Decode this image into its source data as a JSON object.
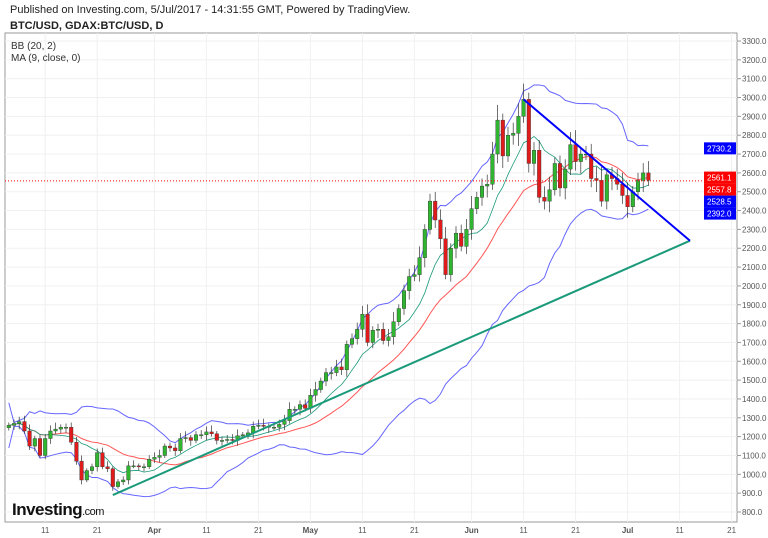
{
  "header": {
    "published": "Published on Investing.com, 5/Jul/2017 - 14:31:55 GMT, Powered by TradingView.",
    "symbol": "BTC/USD, GDAX:BTC/USD, D"
  },
  "indicators": [
    "BB (20, 2)",
    "MA (9, close, 0)"
  ],
  "logo": {
    "main": "Investing",
    "suffix": ".com"
  },
  "chart_data": {
    "type": "candlestick",
    "title": "BTC/USD, GDAX:BTC/USD, D",
    "start_date": "2017-03-04",
    "close": [
      1260,
      1270,
      1280,
      1230,
      1150,
      1190,
      1100,
      1190,
      1230,
      1240,
      1250,
      1250,
      1170,
      1070,
      970,
      1020,
      1040,
      1115,
      1040,
      1030,
      935,
      960,
      970,
      1045,
      1045,
      1040,
      1040,
      1080,
      1090,
      1100,
      1150,
      1140,
      1125,
      1190,
      1195,
      1180,
      1210,
      1210,
      1225,
      1215,
      1180,
      1180,
      1185,
      1180,
      1205,
      1210,
      1220,
      1255,
      1260,
      1255,
      1250,
      1250,
      1265,
      1285,
      1345,
      1345,
      1370,
      1350,
      1420,
      1450,
      1495,
      1540,
      1540,
      1570,
      1555,
      1690,
      1720,
      1770,
      1850,
      1700,
      1765,
      1770,
      1710,
      1730,
      1810,
      1880,
      1975,
      2050,
      2060,
      2150,
      2300,
      2450,
      2350,
      2250,
      2060,
      2200,
      2280,
      2210,
      2300,
      2410,
      2470,
      2530,
      2540,
      2700,
      2880,
      2690,
      2800,
      2810,
      2900,
      2990,
      2650,
      2720,
      2470,
      2450,
      2510,
      2650,
      2520,
      2620,
      2750,
      2660,
      2700,
      2700,
      2570,
      2560,
      2450,
      2590,
      2570,
      2540,
      2480,
      2420,
      2500,
      2560,
      2600,
      2561
    ],
    "ylim": [
      750,
      3350
    ],
    "y_ticks": [
      "3300.0",
      "3200.0",
      "3100.0",
      "3000.0",
      "2900.0",
      "2800.0",
      "2700.0",
      "2600.0",
      "2500.0",
      "2400.0",
      "2300.0",
      "2200.0",
      "2100.0",
      "2000.0",
      "1900.0",
      "1800.0",
      "1700.0",
      "1600.0",
      "1500.0",
      "1400.0",
      "1300.0",
      "1200.0",
      "1100.0",
      "1000.0",
      "900.0",
      "800.0"
    ],
    "x_ticks": [
      {
        "day": 11,
        "label": "11"
      },
      {
        "day": 21,
        "label": "21"
      },
      {
        "day": 32,
        "label": "Apr"
      },
      {
        "day": 42,
        "label": "11"
      },
      {
        "day": 52,
        "label": "21"
      },
      {
        "day": 62,
        "label": "May"
      },
      {
        "day": 72,
        "label": "11"
      },
      {
        "day": 82,
        "label": "21"
      },
      {
        "day": 93,
        "label": "Jun"
      },
      {
        "day": 103,
        "label": "11"
      },
      {
        "day": 113,
        "label": "21"
      },
      {
        "day": 123,
        "label": "Jul"
      },
      {
        "day": 133,
        "label": "11"
      },
      {
        "day": 143,
        "label": "21"
      }
    ],
    "trendlines": [
      {
        "name": "support",
        "color": "#1a9a7a",
        "from": {
          "day": 24,
          "price": 890
        },
        "to": {
          "day": 135,
          "price": 2240
        }
      },
      {
        "name": "resistance",
        "color": "#0000ff",
        "from": {
          "day": 103,
          "price": 2990
        },
        "to": {
          "day": 135,
          "price": 2240
        }
      }
    ],
    "price_labels": [
      {
        "value": "2730.2",
        "price": 2730.2,
        "color": "#0000ff"
      },
      {
        "value": "2561.1",
        "price": 2575,
        "color": "#ff0000"
      },
      {
        "value": "2557.8",
        "price": 2557.8,
        "color": "#ff0000"
      },
      {
        "value": "2528.5",
        "price": 2528.5,
        "color": "#0000ff"
      },
      {
        "value": "2392.0",
        "price": 2392.0,
        "color": "#0000ff"
      }
    ],
    "last_price": 2557.8,
    "colors": {
      "up": "#2fb52f",
      "down": "#e01b1b",
      "bb": "#6666ff",
      "ma_basis": "#ff5555",
      "ma9": "#1a9a7a"
    }
  }
}
